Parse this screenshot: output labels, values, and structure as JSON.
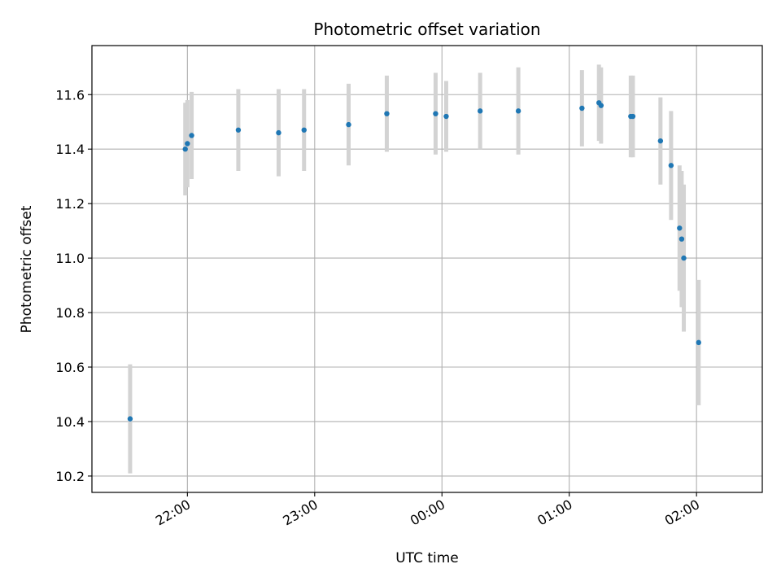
{
  "chart_data": {
    "type": "scatter",
    "title": "Photometric offset variation",
    "xlabel": "UTC time",
    "ylabel": "Photometric offset",
    "x_unit": "UTC time (HH:MM), points after midnight are on the following day",
    "xlim": [
      "21:15",
      "02:31"
    ],
    "ylim": [
      10.14,
      11.78
    ],
    "xticks": [
      "22:00",
      "23:00",
      "00:00",
      "01:00",
      "02:00"
    ],
    "yticks": [
      "10.2",
      "10.4",
      "10.6",
      "10.8",
      "11.0",
      "11.2",
      "11.4",
      "11.6"
    ],
    "grid": true,
    "legend": "none",
    "colors": {
      "point": "#1f77b4",
      "errorbar": "#d3d3d3",
      "grid": "#b0b0b0"
    },
    "points": [
      {
        "x": "21:33",
        "y": 10.41,
        "err": 0.2
      },
      {
        "x": "21:59",
        "y": 11.4,
        "err": 0.17
      },
      {
        "x": "22:00",
        "y": 11.42,
        "err": 0.16
      },
      {
        "x": "22:02",
        "y": 11.45,
        "err": 0.16
      },
      {
        "x": "22:24",
        "y": 11.47,
        "err": 0.15
      },
      {
        "x": "22:43",
        "y": 11.46,
        "err": 0.16
      },
      {
        "x": "22:55",
        "y": 11.47,
        "err": 0.15
      },
      {
        "x": "23:16",
        "y": 11.49,
        "err": 0.15
      },
      {
        "x": "23:34",
        "y": 11.53,
        "err": 0.14
      },
      {
        "x": "23:57",
        "y": 11.53,
        "err": 0.15
      },
      {
        "x": "00:02",
        "y": 11.52,
        "err": 0.13
      },
      {
        "x": "00:18",
        "y": 11.54,
        "err": 0.14
      },
      {
        "x": "00:36",
        "y": 11.54,
        "err": 0.16
      },
      {
        "x": "01:06",
        "y": 11.55,
        "err": 0.14
      },
      {
        "x": "01:14",
        "y": 11.57,
        "err": 0.14
      },
      {
        "x": "01:15",
        "y": 11.56,
        "err": 0.14
      },
      {
        "x": "01:29",
        "y": 11.52,
        "err": 0.15
      },
      {
        "x": "01:30",
        "y": 11.52,
        "err": 0.15
      },
      {
        "x": "01:43",
        "y": 11.43,
        "err": 0.16
      },
      {
        "x": "01:48",
        "y": 11.34,
        "err": 0.2
      },
      {
        "x": "01:52",
        "y": 11.11,
        "err": 0.23
      },
      {
        "x": "01:53",
        "y": 11.07,
        "err": 0.25
      },
      {
        "x": "01:54",
        "y": 11.0,
        "err": 0.27
      },
      {
        "x": "02:01",
        "y": 10.69,
        "err": 0.23
      }
    ]
  }
}
